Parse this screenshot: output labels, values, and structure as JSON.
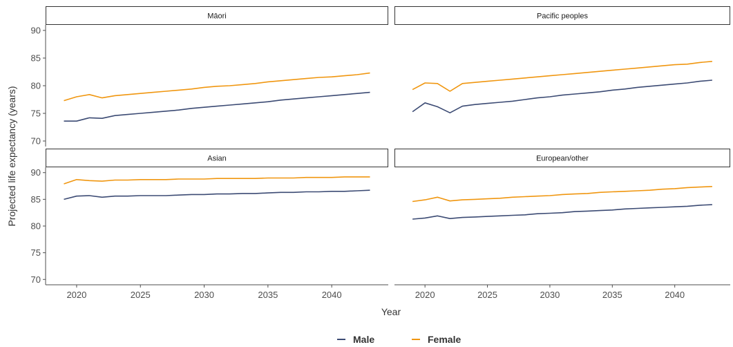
{
  "chart_data": {
    "type": "line",
    "xlabel": "Year",
    "ylabel": "Projected life expectancy (years)",
    "xlim": [
      2018,
      2044
    ],
    "ylim": [
      69,
      91
    ],
    "x_ticks": [
      2020,
      2025,
      2030,
      2035,
      2040
    ],
    "y_ticks": [
      70,
      75,
      80,
      85,
      90
    ],
    "legend": {
      "position": "bottom",
      "entries": [
        "Male",
        "Female"
      ]
    },
    "colors": {
      "Male": "#3b4a73",
      "Female": "#f0960f"
    },
    "years": [
      2019,
      2020,
      2021,
      2022,
      2023,
      2024,
      2025,
      2026,
      2027,
      2028,
      2029,
      2030,
      2031,
      2032,
      2033,
      2034,
      2035,
      2036,
      2037,
      2038,
      2039,
      2040,
      2041,
      2042,
      2043
    ],
    "panels": [
      {
        "title": "Māori",
        "series": [
          {
            "name": "Male",
            "values": [
              73.6,
              73.6,
              74.2,
              74.1,
              74.6,
              74.8,
              75.0,
              75.2,
              75.4,
              75.6,
              75.9,
              76.1,
              76.3,
              76.5,
              76.7,
              76.9,
              77.1,
              77.4,
              77.6,
              77.8,
              78.0,
              78.2,
              78.4,
              78.6,
              78.8
            ]
          },
          {
            "name": "Female",
            "values": [
              77.3,
              78.0,
              78.4,
              77.8,
              78.2,
              78.4,
              78.6,
              78.8,
              79.0,
              79.2,
              79.4,
              79.7,
              79.9,
              80.0,
              80.2,
              80.4,
              80.7,
              80.9,
              81.1,
              81.3,
              81.5,
              81.6,
              81.8,
              82.0,
              82.3
            ]
          }
        ]
      },
      {
        "title": "Pacific peoples",
        "series": [
          {
            "name": "Male",
            "values": [
              75.3,
              76.9,
              76.2,
              75.1,
              76.3,
              76.6,
              76.8,
              77.0,
              77.2,
              77.5,
              77.8,
              78.0,
              78.3,
              78.5,
              78.7,
              78.9,
              79.2,
              79.4,
              79.7,
              79.9,
              80.1,
              80.3,
              80.5,
              80.8,
              81.0
            ]
          },
          {
            "name": "Female",
            "values": [
              79.3,
              80.5,
              80.4,
              79.0,
              80.4,
              80.6,
              80.8,
              81.0,
              81.2,
              81.4,
              81.6,
              81.8,
              82.0,
              82.2,
              82.4,
              82.6,
              82.8,
              83.0,
              83.2,
              83.4,
              83.6,
              83.8,
              83.9,
              84.2,
              84.4
            ]
          }
        ]
      },
      {
        "title": "Asian",
        "series": [
          {
            "name": "Male",
            "values": [
              85.0,
              85.6,
              85.7,
              85.4,
              85.6,
              85.6,
              85.7,
              85.7,
              85.7,
              85.8,
              85.9,
              85.9,
              86.0,
              86.0,
              86.1,
              86.1,
              86.2,
              86.3,
              86.3,
              86.4,
              86.4,
              86.5,
              86.5,
              86.6,
              86.7
            ]
          },
          {
            "name": "Female",
            "values": [
              87.9,
              88.7,
              88.5,
              88.4,
              88.6,
              88.6,
              88.7,
              88.7,
              88.7,
              88.8,
              88.8,
              88.8,
              88.9,
              88.9,
              88.9,
              88.9,
              89.0,
              89.0,
              89.0,
              89.1,
              89.1,
              89.1,
              89.2,
              89.2,
              89.2
            ]
          }
        ]
      },
      {
        "title": "European/other",
        "series": [
          {
            "name": "Male",
            "values": [
              81.3,
              81.5,
              81.9,
              81.4,
              81.6,
              81.7,
              81.8,
              81.9,
              82.0,
              82.1,
              82.3,
              82.4,
              82.5,
              82.7,
              82.8,
              82.9,
              83.0,
              83.2,
              83.3,
              83.4,
              83.5,
              83.6,
              83.7,
              83.9,
              84.0
            ]
          },
          {
            "name": "Female",
            "values": [
              84.6,
              84.9,
              85.4,
              84.7,
              84.9,
              85.0,
              85.1,
              85.2,
              85.4,
              85.5,
              85.6,
              85.7,
              85.9,
              86.0,
              86.1,
              86.3,
              86.4,
              86.5,
              86.6,
              86.7,
              86.9,
              87.0,
              87.2,
              87.3,
              87.4
            ]
          }
        ]
      }
    ]
  }
}
